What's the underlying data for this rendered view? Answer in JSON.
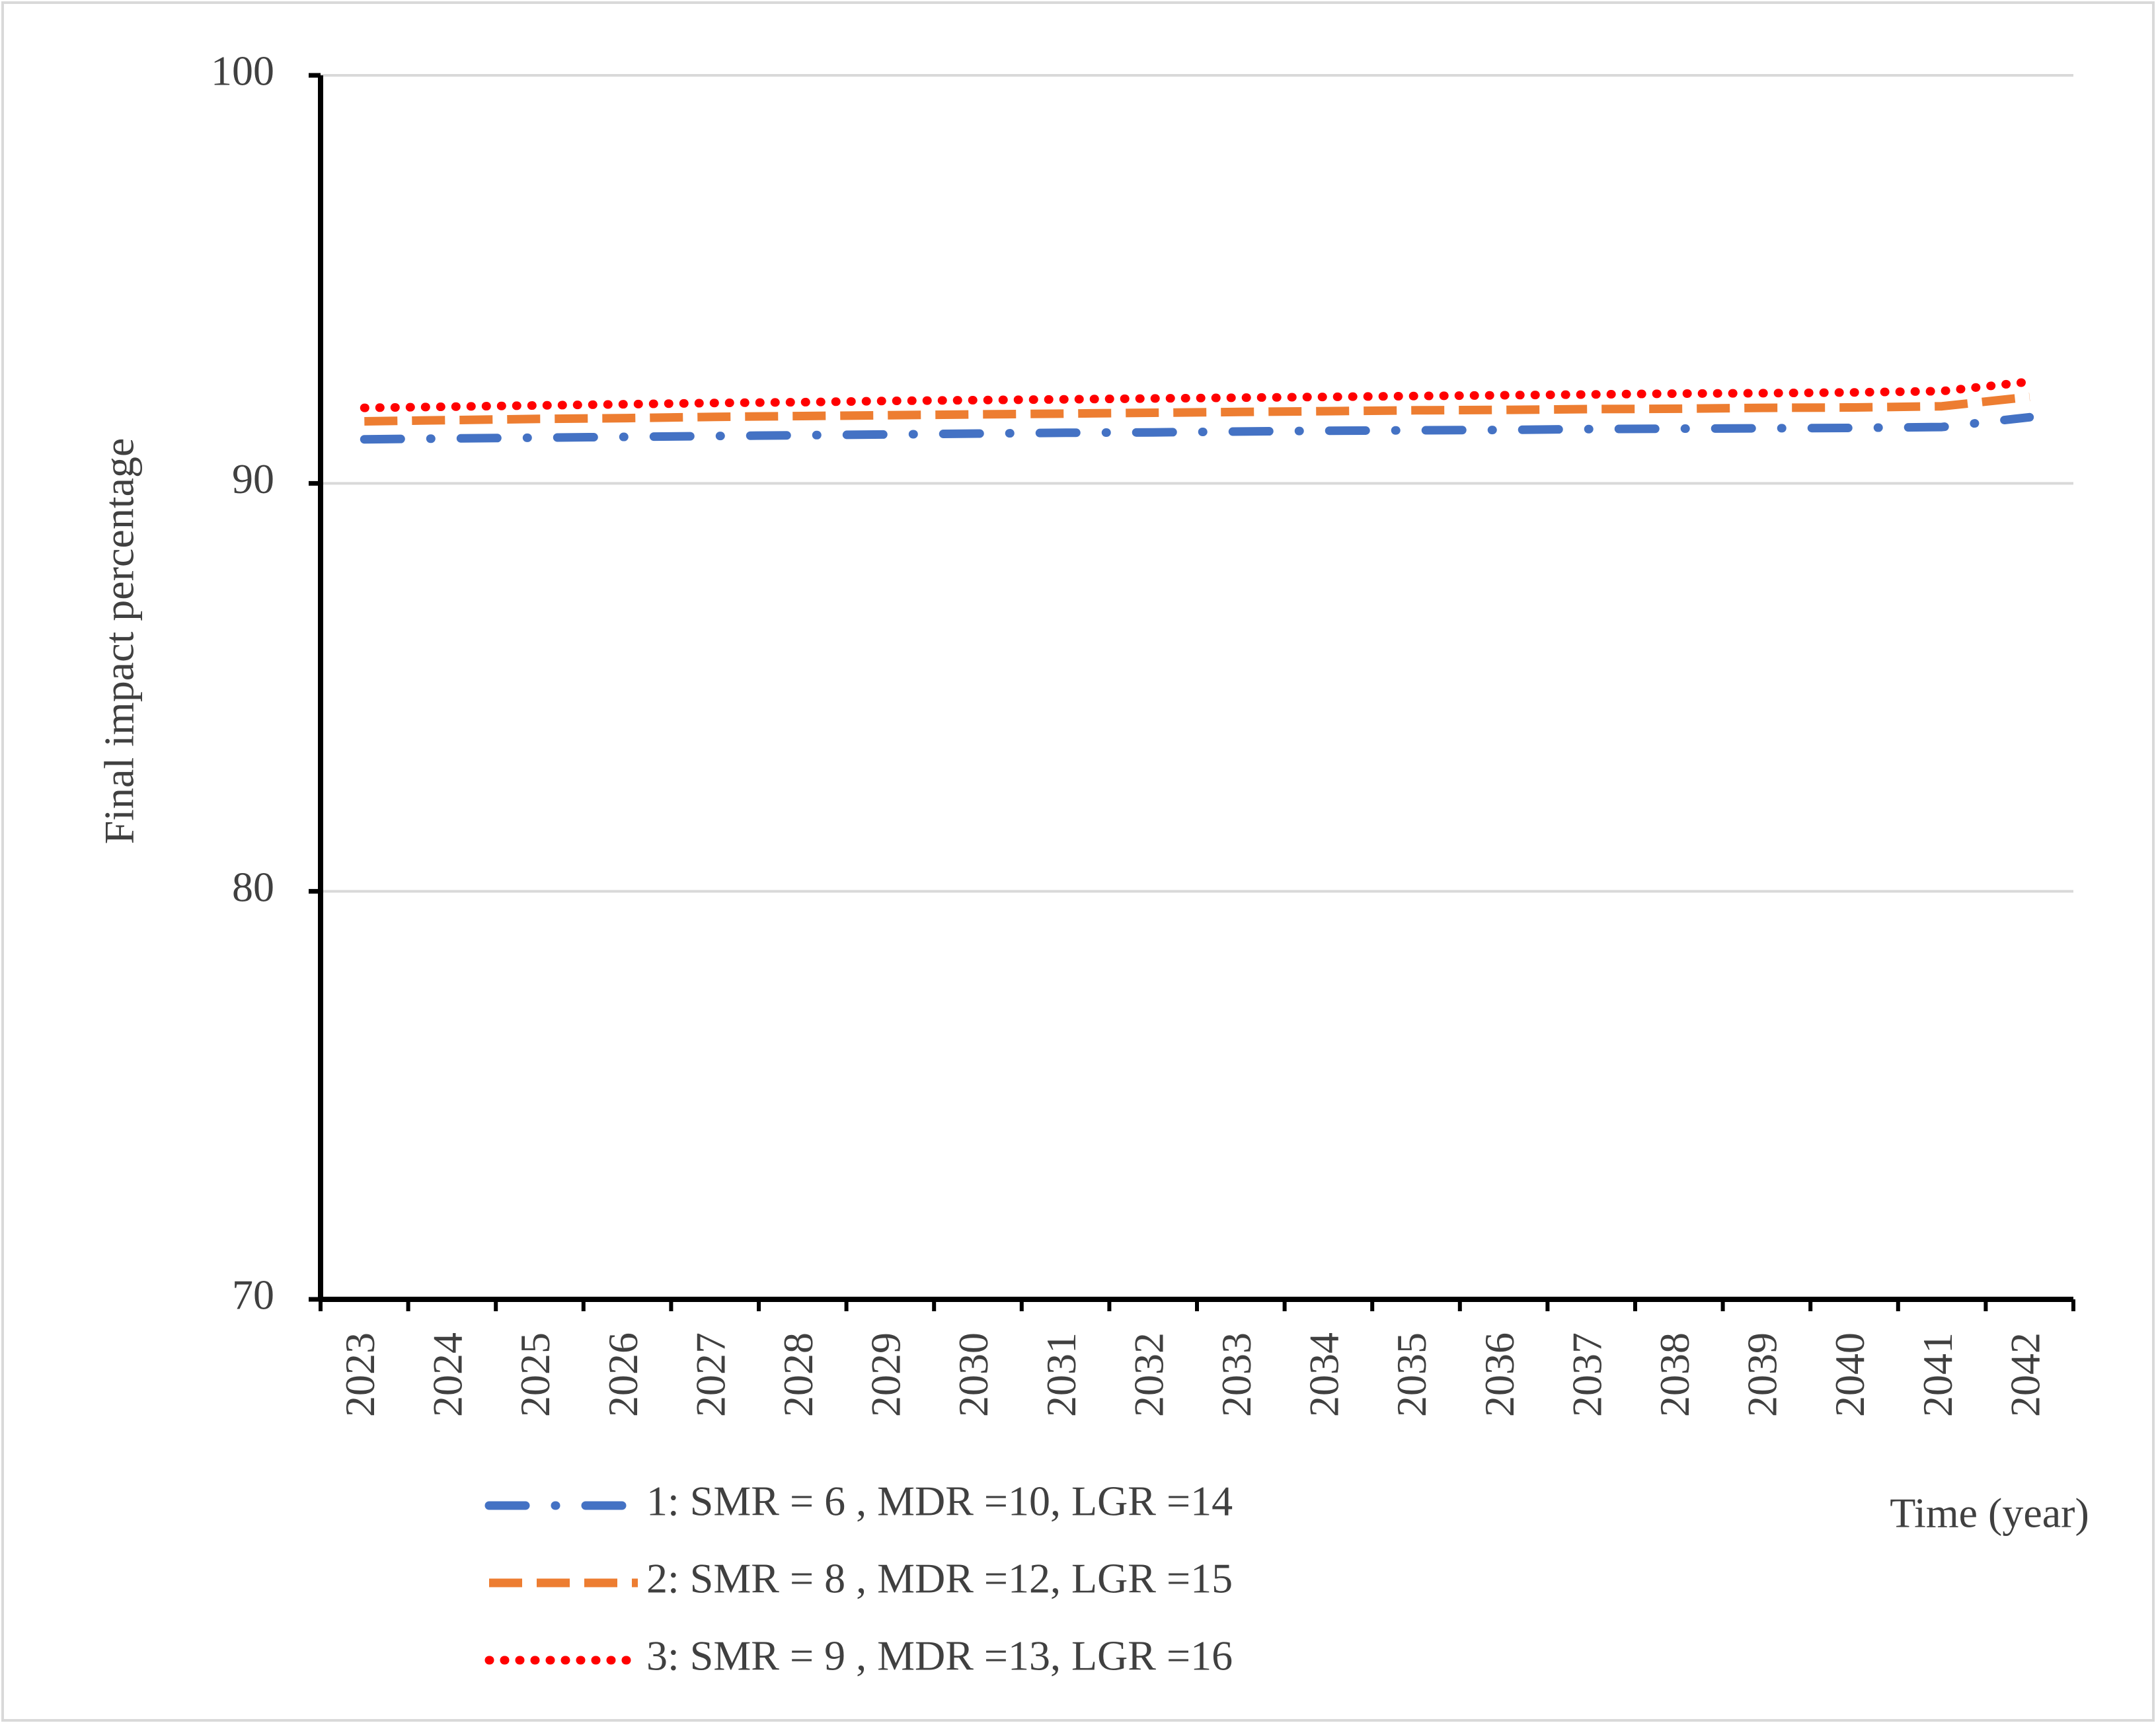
{
  "chart_data": {
    "type": "line",
    "y_label": "Final impact percentage",
    "x_label": "Time (year)",
    "categories": [
      "2023",
      "2024",
      "2025",
      "2026",
      "2027",
      "2028",
      "2029",
      "2030",
      "2031",
      "2032",
      "2033",
      "2034",
      "2035",
      "2036",
      "2037",
      "2038",
      "2039",
      "2040",
      "2041",
      "2042"
    ],
    "series": [
      {
        "name": "1: SMR = 6 , MDR =10, LGR =14",
        "color": "#4472c4",
        "dash": "dashdot",
        "values": [
          91.08,
          91.1,
          91.12,
          91.14,
          91.16,
          91.18,
          91.2,
          91.22,
          91.24,
          91.25,
          91.27,
          91.29,
          91.3,
          91.31,
          91.33,
          91.34,
          91.35,
          91.36,
          91.38,
          91.62
        ]
      },
      {
        "name": "2: SMR = 8 , MDR =12, LGR =15",
        "color": "#ed7d31",
        "dash": "dash",
        "values": [
          91.52,
          91.55,
          91.58,
          91.6,
          91.63,
          91.65,
          91.67,
          91.69,
          91.71,
          91.73,
          91.75,
          91.77,
          91.79,
          91.8,
          91.82,
          91.83,
          91.85,
          91.86,
          91.89,
          92.12
        ]
      },
      {
        "name": "3: SMR = 9 , MDR =13, LGR =16",
        "color": "#ff0000",
        "dash": "dot",
        "values": [
          91.85,
          91.88,
          91.91,
          91.94,
          91.97,
          91.99,
          92.02,
          92.04,
          92.06,
          92.08,
          92.1,
          92.12,
          92.14,
          92.16,
          92.18,
          92.2,
          92.21,
          92.23,
          92.26,
          92.49
        ]
      }
    ],
    "ylim": [
      70,
      100
    ],
    "yticks": [
      70,
      80,
      90,
      100
    ],
    "grid": true
  }
}
